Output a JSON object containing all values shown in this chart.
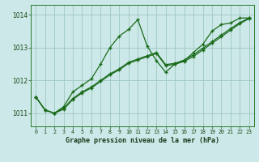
{
  "x": [
    0,
    1,
    2,
    3,
    4,
    5,
    6,
    7,
    8,
    9,
    10,
    11,
    12,
    13,
    14,
    15,
    16,
    17,
    18,
    19,
    20,
    21,
    22,
    23
  ],
  "line1": [
    1011.5,
    1011.1,
    1011.0,
    1011.2,
    1011.65,
    1011.85,
    1012.05,
    1012.5,
    1013.0,
    1013.35,
    1013.55,
    1013.85,
    1013.05,
    1012.6,
    1012.25,
    1012.5,
    1012.6,
    1012.85,
    1013.1,
    1013.5,
    1013.7,
    1013.75,
    1013.9,
    1013.9
  ],
  "line2": [
    1011.5,
    1011.1,
    1011.0,
    1011.15,
    1011.45,
    1011.65,
    1011.8,
    1012.0,
    1012.2,
    1012.35,
    1012.55,
    1012.65,
    1012.75,
    1012.85,
    1012.45,
    1012.5,
    1012.6,
    1012.75,
    1012.95,
    1013.15,
    1013.35,
    1013.55,
    1013.75,
    1013.9
  ],
  "line3": [
    1011.5,
    1011.1,
    1011.0,
    1011.15,
    1011.45,
    1011.65,
    1011.8,
    1012.0,
    1012.2,
    1012.35,
    1012.55,
    1012.65,
    1012.75,
    1012.85,
    1012.45,
    1012.5,
    1012.6,
    1012.75,
    1012.95,
    1013.15,
    1013.35,
    1013.55,
    1013.75,
    1013.9
  ],
  "ylim": [
    1010.6,
    1014.3
  ],
  "yticks": [
    1011,
    1012,
    1013,
    1014
  ],
  "xticks": [
    0,
    1,
    2,
    3,
    4,
    5,
    6,
    7,
    8,
    9,
    10,
    11,
    12,
    13,
    14,
    15,
    16,
    17,
    18,
    19,
    20,
    21,
    22,
    23
  ],
  "xlabel": "Graphe pression niveau de la mer (hPa)",
  "line_color": "#1a6b1a",
  "bg_color": "#cce8e8",
  "grid_color": "#9ec8c0",
  "marker": "+"
}
